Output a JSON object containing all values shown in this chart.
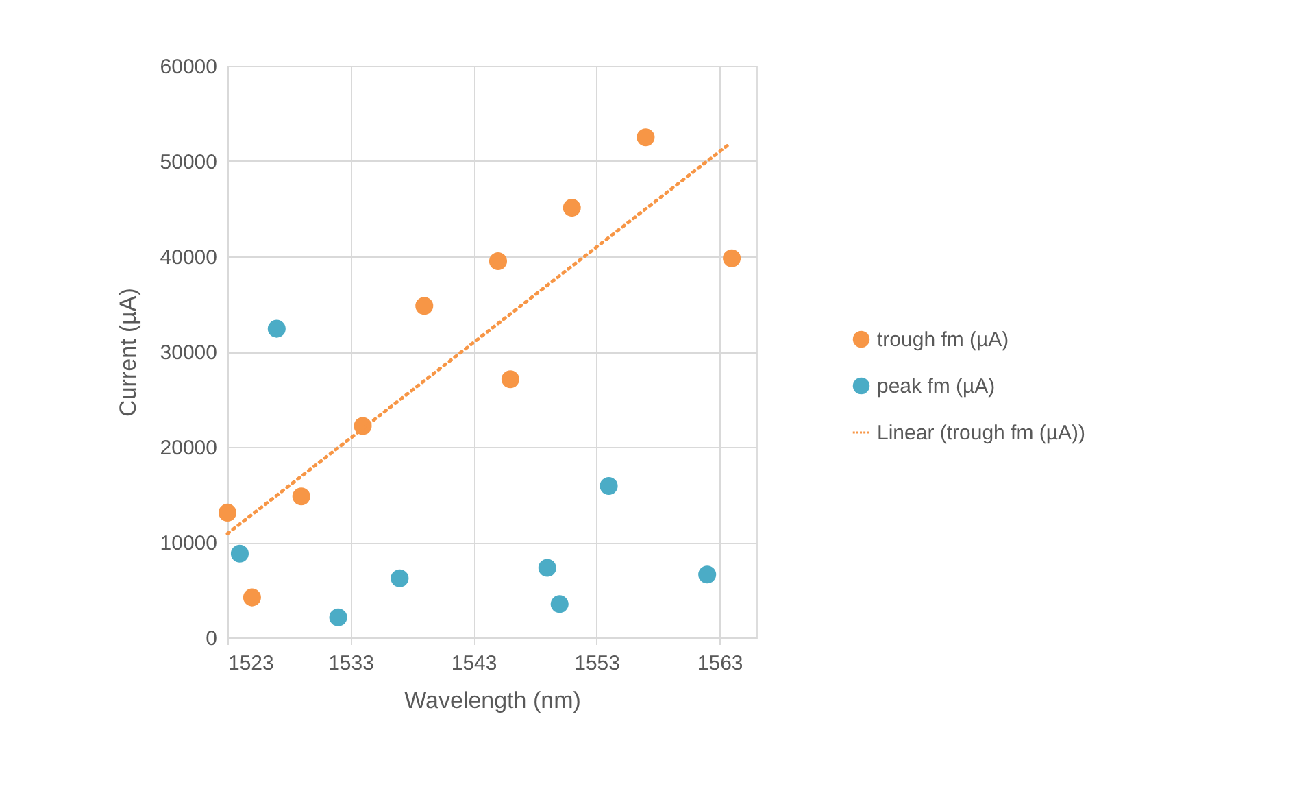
{
  "chart_data": {
    "type": "scatter",
    "xlabel": "Wavelength (nm)",
    "ylabel": "Current (µA)",
    "xlim": [
      1523,
      1566
    ],
    "xticks": [
      1523,
      1533,
      1543,
      1553,
      1563
    ],
    "ylim": [
      0,
      60000
    ],
    "yticks": [
      0,
      10000,
      20000,
      30000,
      40000,
      50000,
      60000
    ],
    "grid": true,
    "legend": "right",
    "series": [
      {
        "name": "trough fm (µA)",
        "color": "#f79646",
        "marker": "circle",
        "x": [
          1523,
          1525,
          1529,
          1534,
          1539,
          1545,
          1546,
          1551,
          1557,
          1564
        ],
        "values": [
          13100,
          4200,
          14800,
          22200,
          34800,
          39500,
          27100,
          45100,
          52500,
          39800
        ]
      },
      {
        "name": "peak fm (µA)",
        "color": "#4bacc6",
        "marker": "circle",
        "x": [
          1524,
          1527,
          1532,
          1537,
          1549,
          1550,
          1554,
          1562
        ],
        "values": [
          8800,
          32400,
          2100,
          6200,
          7300,
          3500,
          15900,
          6600
        ]
      },
      {
        "name": "Linear  (trough fm (µA))",
        "color": "#f79646",
        "type": "line",
        "line_style": "dotted",
        "x": [
          1523,
          1563.7
        ],
        "values": [
          10900,
          51700
        ]
      }
    ]
  }
}
